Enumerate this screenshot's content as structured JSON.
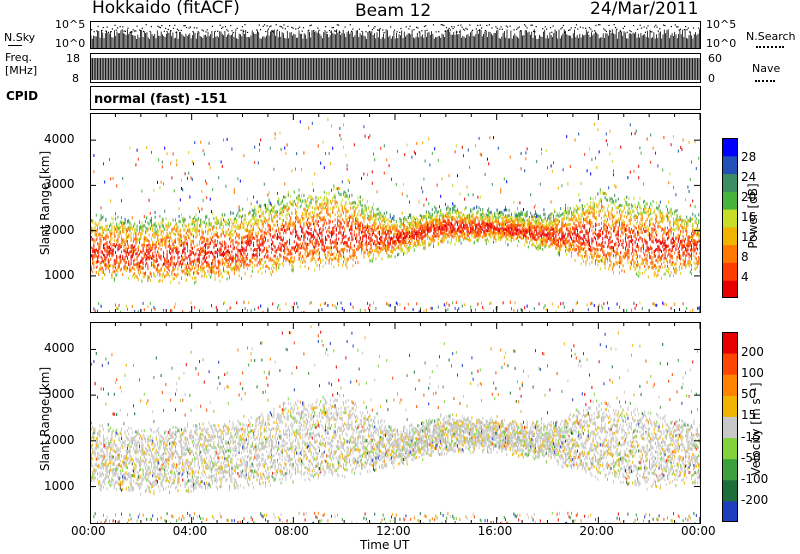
{
  "header": {
    "radar": "Hokkaido (fitACF)",
    "beam": "Beam 12",
    "date": "24/Mar/2011"
  },
  "nsky_panel": {
    "label": "N.Sky",
    "right_label": "N.Search",
    "ticks": [
      "10^5",
      "10^0"
    ],
    "right_ticks": [
      "10^5",
      "10^0"
    ]
  },
  "freq_panel": {
    "label": "Freq.",
    "unit": "[MHz]",
    "ticks": [
      "18",
      "8"
    ],
    "right_label": "Nave",
    "right_ticks": [
      "60",
      "0"
    ]
  },
  "cpid_panel": {
    "label": "CPID",
    "mode": "normal (fast) -151"
  },
  "colors": {
    "power": [
      "#0000ff",
      "#2050b8",
      "#3c8c64",
      "#46b43c",
      "#c8dc2a",
      "#f0b400",
      "#ff7800",
      "#ff3c00",
      "#e60000"
    ],
    "velocity": [
      "#1e3cbe",
      "#1e6e3c",
      "#3ca03c",
      "#82d23c",
      "#c8c8c8",
      "#f0b400",
      "#ff8200",
      "#ff4600",
      "#e60000"
    ]
  },
  "chart_data": [
    {
      "type": "heatmap",
      "title": "Power",
      "xlabel": "Time UT",
      "ylabel": "Slant Range [km]",
      "xlim": [
        "00:00",
        "24:00"
      ],
      "ylim": [
        180,
        4600
      ],
      "x_ticks": [
        "00:00",
        "04:00",
        "08:00",
        "12:00",
        "16:00",
        "20:00",
        "00:00"
      ],
      "y_ticks": [
        1000,
        2000,
        3000,
        4000
      ],
      "colorbar": {
        "label": "Power [dB]",
        "ticks": [
          "28",
          "24",
          "20",
          "16",
          "12",
          "8",
          "4"
        ],
        "range": [
          0,
          32
        ]
      },
      "echo_band_hours": [
        0,
        2,
        4,
        6,
        8,
        10,
        12,
        14,
        16,
        18,
        20,
        22,
        24
      ],
      "echo_band_lower_km": [
        1100,
        1000,
        1000,
        1100,
        1250,
        1300,
        1600,
        1850,
        1900,
        1700,
        1250,
        1100,
        1200
      ],
      "echo_band_upper_km": [
        2300,
        2200,
        2300,
        2400,
        2800,
        2900,
        2200,
        2500,
        2400,
        2300,
        2800,
        2600,
        2300
      ]
    },
    {
      "type": "heatmap",
      "title": "Velocity",
      "xlabel": "Time UT",
      "ylabel": "Slant Range [km]",
      "xlim": [
        "00:00",
        "24:00"
      ],
      "ylim": [
        180,
        4600
      ],
      "x_ticks": [
        "00:00",
        "04:00",
        "08:00",
        "12:00",
        "16:00",
        "20:00",
        "00:00"
      ],
      "y_ticks": [
        1000,
        2000,
        3000,
        4000
      ],
      "colorbar": {
        "label": "Velocity [m s⁻¹]",
        "ticks": [
          "200",
          "100",
          "50",
          "15",
          "-15",
          "-50",
          "-100",
          "-200"
        ]
      }
    }
  ]
}
